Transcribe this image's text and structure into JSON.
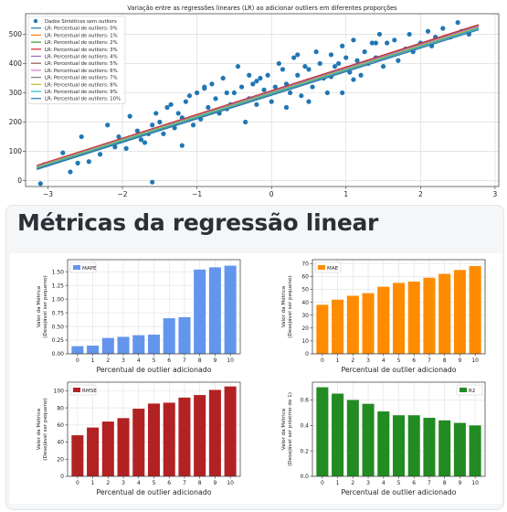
{
  "scatter": {
    "title": "Variação entre as regressões lineares (LR) ao adicionar outliers em diferentes proporções",
    "legend_location": "upper-left",
    "xlim": [
      -3.3,
      3.05
    ],
    "ylim": [
      -20,
      570
    ],
    "xticks": [
      "−3",
      "−2",
      "−1",
      "0",
      "1",
      "2",
      "3"
    ],
    "xtick_values": [
      -3,
      -2,
      -1,
      0,
      1,
      2,
      3
    ],
    "yticks": [
      "0",
      "100",
      "200",
      "300",
      "400",
      "500"
    ],
    "ytick_values": [
      0,
      100,
      200,
      300,
      400,
      500
    ],
    "grid": true,
    "point_color": "#1f77b4",
    "legend": [
      {
        "label": "Dados Sintéticos sem outliers",
        "kind": "point",
        "color": "#1f77b4"
      },
      {
        "label": "LR: Percentual de outliers: 0%",
        "kind": "line",
        "color": "#1f77b4"
      },
      {
        "label": "LR: Percentual de outliers: 1%",
        "kind": "line",
        "color": "#ff7f0e"
      },
      {
        "label": "LR: Percentual de outliers: 2%",
        "kind": "line",
        "color": "#2ca02c"
      },
      {
        "label": "LR: Percentual de outliers: 3%",
        "kind": "line",
        "color": "#d62728"
      },
      {
        "label": "LR: Percentual de outliers: 4%",
        "kind": "line",
        "color": "#9467bd"
      },
      {
        "label": "LR: Percentual de outliers: 5%",
        "kind": "line",
        "color": "#8c564b"
      },
      {
        "label": "LR: Percentual de outliers: 6%",
        "kind": "line",
        "color": "#e377c2"
      },
      {
        "label": "LR: Percentual de outliers: 7%",
        "kind": "line",
        "color": "#7f7f7f"
      },
      {
        "label": "LR: Percentual de outliers: 8%",
        "kind": "line",
        "color": "#bcbd22"
      },
      {
        "label": "LR: Percentual de outliers: 9%",
        "kind": "line",
        "color": "#17becf"
      },
      {
        "label": "LR: Percentual de outliers: 10%",
        "kind": "line",
        "color": "#1f77b4"
      }
    ],
    "lines": [
      {
        "x": [
          -3.15,
          2.78
        ],
        "y": [
          46,
          530
        ],
        "color": "#1f77b4"
      },
      {
        "x": [
          -3.15,
          2.78
        ],
        "y": [
          43,
          527
        ],
        "color": "#ff7f0e"
      },
      {
        "x": [
          -3.15,
          2.78
        ],
        "y": [
          47,
          531
        ],
        "color": "#2ca02c"
      },
      {
        "x": [
          -3.15,
          2.78
        ],
        "y": [
          52,
          533
        ],
        "color": "#d62728"
      },
      {
        "x": [
          -3.15,
          2.78
        ],
        "y": [
          49,
          529
        ],
        "color": "#9467bd"
      },
      {
        "x": [
          -3.15,
          2.78
        ],
        "y": [
          42,
          522
        ],
        "color": "#8c564b"
      },
      {
        "x": [
          -3.15,
          2.78
        ],
        "y": [
          45,
          526
        ],
        "color": "#e377c2"
      },
      {
        "x": [
          -3.15,
          2.78
        ],
        "y": [
          40,
          519
        ],
        "color": "#7f7f7f"
      },
      {
        "x": [
          -3.15,
          2.78
        ],
        "y": [
          47,
          524
        ],
        "color": "#bcbd22"
      },
      {
        "x": [
          -3.15,
          2.78
        ],
        "y": [
          44,
          521
        ],
        "color": "#17becf"
      },
      {
        "x": [
          -3.15,
          2.78
        ],
        "y": [
          38,
          515
        ],
        "color": "#1f77b4"
      }
    ],
    "points": {
      "x": [
        -3.1,
        -3.05,
        -2.8,
        -2.7,
        -2.55,
        -2.45,
        -2.3,
        -2.2,
        -2.1,
        -2.05,
        -1.95,
        -1.9,
        -1.8,
        -1.75,
        -1.7,
        -1.65,
        -1.6,
        -1.6,
        -1.55,
        -1.5,
        -1.45,
        -1.4,
        -1.35,
        -1.3,
        -1.25,
        -1.2,
        -1.15,
        -1.1,
        -1.05,
        -1.0,
        -0.95,
        -0.9,
        -0.85,
        -0.8,
        -0.75,
        -0.7,
        -0.65,
        -0.6,
        -0.55,
        -0.5,
        -0.45,
        -0.4,
        -0.35,
        -0.3,
        -0.25,
        -0.2,
        -0.15,
        -0.1,
        -0.05,
        0.0,
        0.05,
        0.1,
        0.15,
        0.2,
        0.25,
        0.3,
        0.35,
        0.4,
        0.45,
        0.5,
        0.55,
        0.6,
        0.65,
        0.7,
        0.75,
        0.8,
        0.85,
        0.9,
        0.95,
        1.0,
        1.05,
        1.1,
        1.15,
        1.2,
        1.25,
        1.3,
        1.35,
        1.4,
        1.45,
        1.5,
        1.55,
        1.6,
        1.65,
        1.7,
        1.8,
        1.85,
        1.9,
        2.0,
        2.1,
        2.15,
        2.2,
        2.3,
        2.4,
        2.5,
        2.55,
        2.65,
        2.7,
        -1.2,
        -0.9,
        -0.6,
        -0.3,
        0.2,
        0.5,
        0.8,
        1.1,
        1.4,
        -2.6,
        -0.2,
        0.35,
        0.95
      ],
      "y": [
        -10,
        55,
        95,
        30,
        150,
        65,
        90,
        190,
        115,
        150,
        110,
        220,
        170,
        140,
        130,
        160,
        190,
        -5,
        230,
        200,
        160,
        250,
        260,
        180,
        230,
        120,
        270,
        290,
        190,
        300,
        210,
        315,
        250,
        330,
        280,
        230,
        350,
        300,
        260,
        300,
        390,
        320,
        200,
        280,
        330,
        260,
        350,
        310,
        360,
        270,
        320,
        400,
        380,
        330,
        300,
        420,
        360,
        290,
        390,
        380,
        320,
        440,
        400,
        350,
        300,
        430,
        390,
        400,
        460,
        420,
        370,
        480,
        410,
        360,
        440,
        400,
        470,
        420,
        500,
        390,
        470,
        430,
        480,
        410,
        450,
        500,
        440,
        470,
        510,
        460,
        490,
        520,
        490,
        540,
        510,
        500,
        520,
        215,
        320,
        245,
        360,
        250,
        270,
        355,
        345,
        470,
        60,
        340,
        430,
        300
      ]
    }
  },
  "metrics": {
    "title": "Métricas da regressão linear"
  },
  "chart_data": [
    {
      "type": "bar",
      "name": "MAPE",
      "legend_location": "upper-left",
      "categories": [
        "0",
        "1",
        "2",
        "3",
        "4",
        "5",
        "6",
        "7",
        "8",
        "9",
        "10"
      ],
      "values": [
        0.14,
        0.15,
        0.29,
        0.31,
        0.34,
        0.35,
        0.65,
        0.67,
        1.54,
        1.58,
        1.61
      ],
      "xlabel": "Percentual de outlier adicionado",
      "ylabel": [
        "Valor da Métrica",
        "(Desejável ser pequeno)"
      ],
      "ylim": [
        0,
        1.72
      ],
      "yticks": [
        "0.00",
        "0.25",
        "0.50",
        "0.75",
        "1.00",
        "1.25",
        "1.50"
      ],
      "ytick_values": [
        0,
        0.25,
        0.5,
        0.75,
        1.0,
        1.25,
        1.5
      ],
      "color": "#6495ed",
      "grid": true
    },
    {
      "type": "bar",
      "name": "MAE",
      "legend_location": "upper-left",
      "categories": [
        "0",
        "1",
        "2",
        "3",
        "4",
        "5",
        "6",
        "7",
        "8",
        "9",
        "10"
      ],
      "values": [
        38,
        42,
        45,
        47,
        52,
        55,
        56,
        59,
        62,
        65,
        68
      ],
      "xlabel": "Percentual de outlier adicionado",
      "ylabel": [
        "Valor da Métrica",
        "(Desejável ser pequeno)"
      ],
      "ylim": [
        0,
        73
      ],
      "yticks": [
        "0",
        "10",
        "20",
        "30",
        "40",
        "50",
        "60",
        "70"
      ],
      "ytick_values": [
        0,
        10,
        20,
        30,
        40,
        50,
        60,
        70
      ],
      "color": "#ff8c00",
      "grid": true
    },
    {
      "type": "bar",
      "name": "RMSE",
      "legend_location": "upper-left",
      "categories": [
        "0",
        "1",
        "2",
        "3",
        "4",
        "5",
        "6",
        "7",
        "8",
        "9",
        "10"
      ],
      "values": [
        48,
        57,
        64,
        68,
        79,
        85,
        86,
        92,
        95,
        101,
        105
      ],
      "xlabel": "Percentual de outlier adicionado",
      "ylabel": [
        "Valor da Métrica",
        "(Desejável ser pequeno)"
      ],
      "ylim": [
        0,
        110
      ],
      "yticks": [
        "0",
        "20",
        "40",
        "60",
        "80",
        "100"
      ],
      "ytick_values": [
        0,
        20,
        40,
        60,
        80,
        100
      ],
      "color": "#b22222",
      "grid": true
    },
    {
      "type": "bar",
      "name": "R2",
      "legend_location": "upper-right",
      "categories": [
        "0",
        "1",
        "2",
        "3",
        "4",
        "5",
        "6",
        "7",
        "8",
        "9",
        "10"
      ],
      "values": [
        0.7,
        0.65,
        0.6,
        0.57,
        0.51,
        0.48,
        0.48,
        0.46,
        0.44,
        0.42,
        0.4
      ],
      "xlabel": "Percentual de outlier adicionado",
      "ylabel": [
        "Valor da Métrica",
        "(Desejável ser próximo de 1)"
      ],
      "ylim": [
        0,
        0.74
      ],
      "yticks": [
        "0.0",
        "0.2",
        "0.4",
        "0.6"
      ],
      "ytick_values": [
        0,
        0.2,
        0.4,
        0.6
      ],
      "color": "#228b22",
      "grid": true
    }
  ]
}
